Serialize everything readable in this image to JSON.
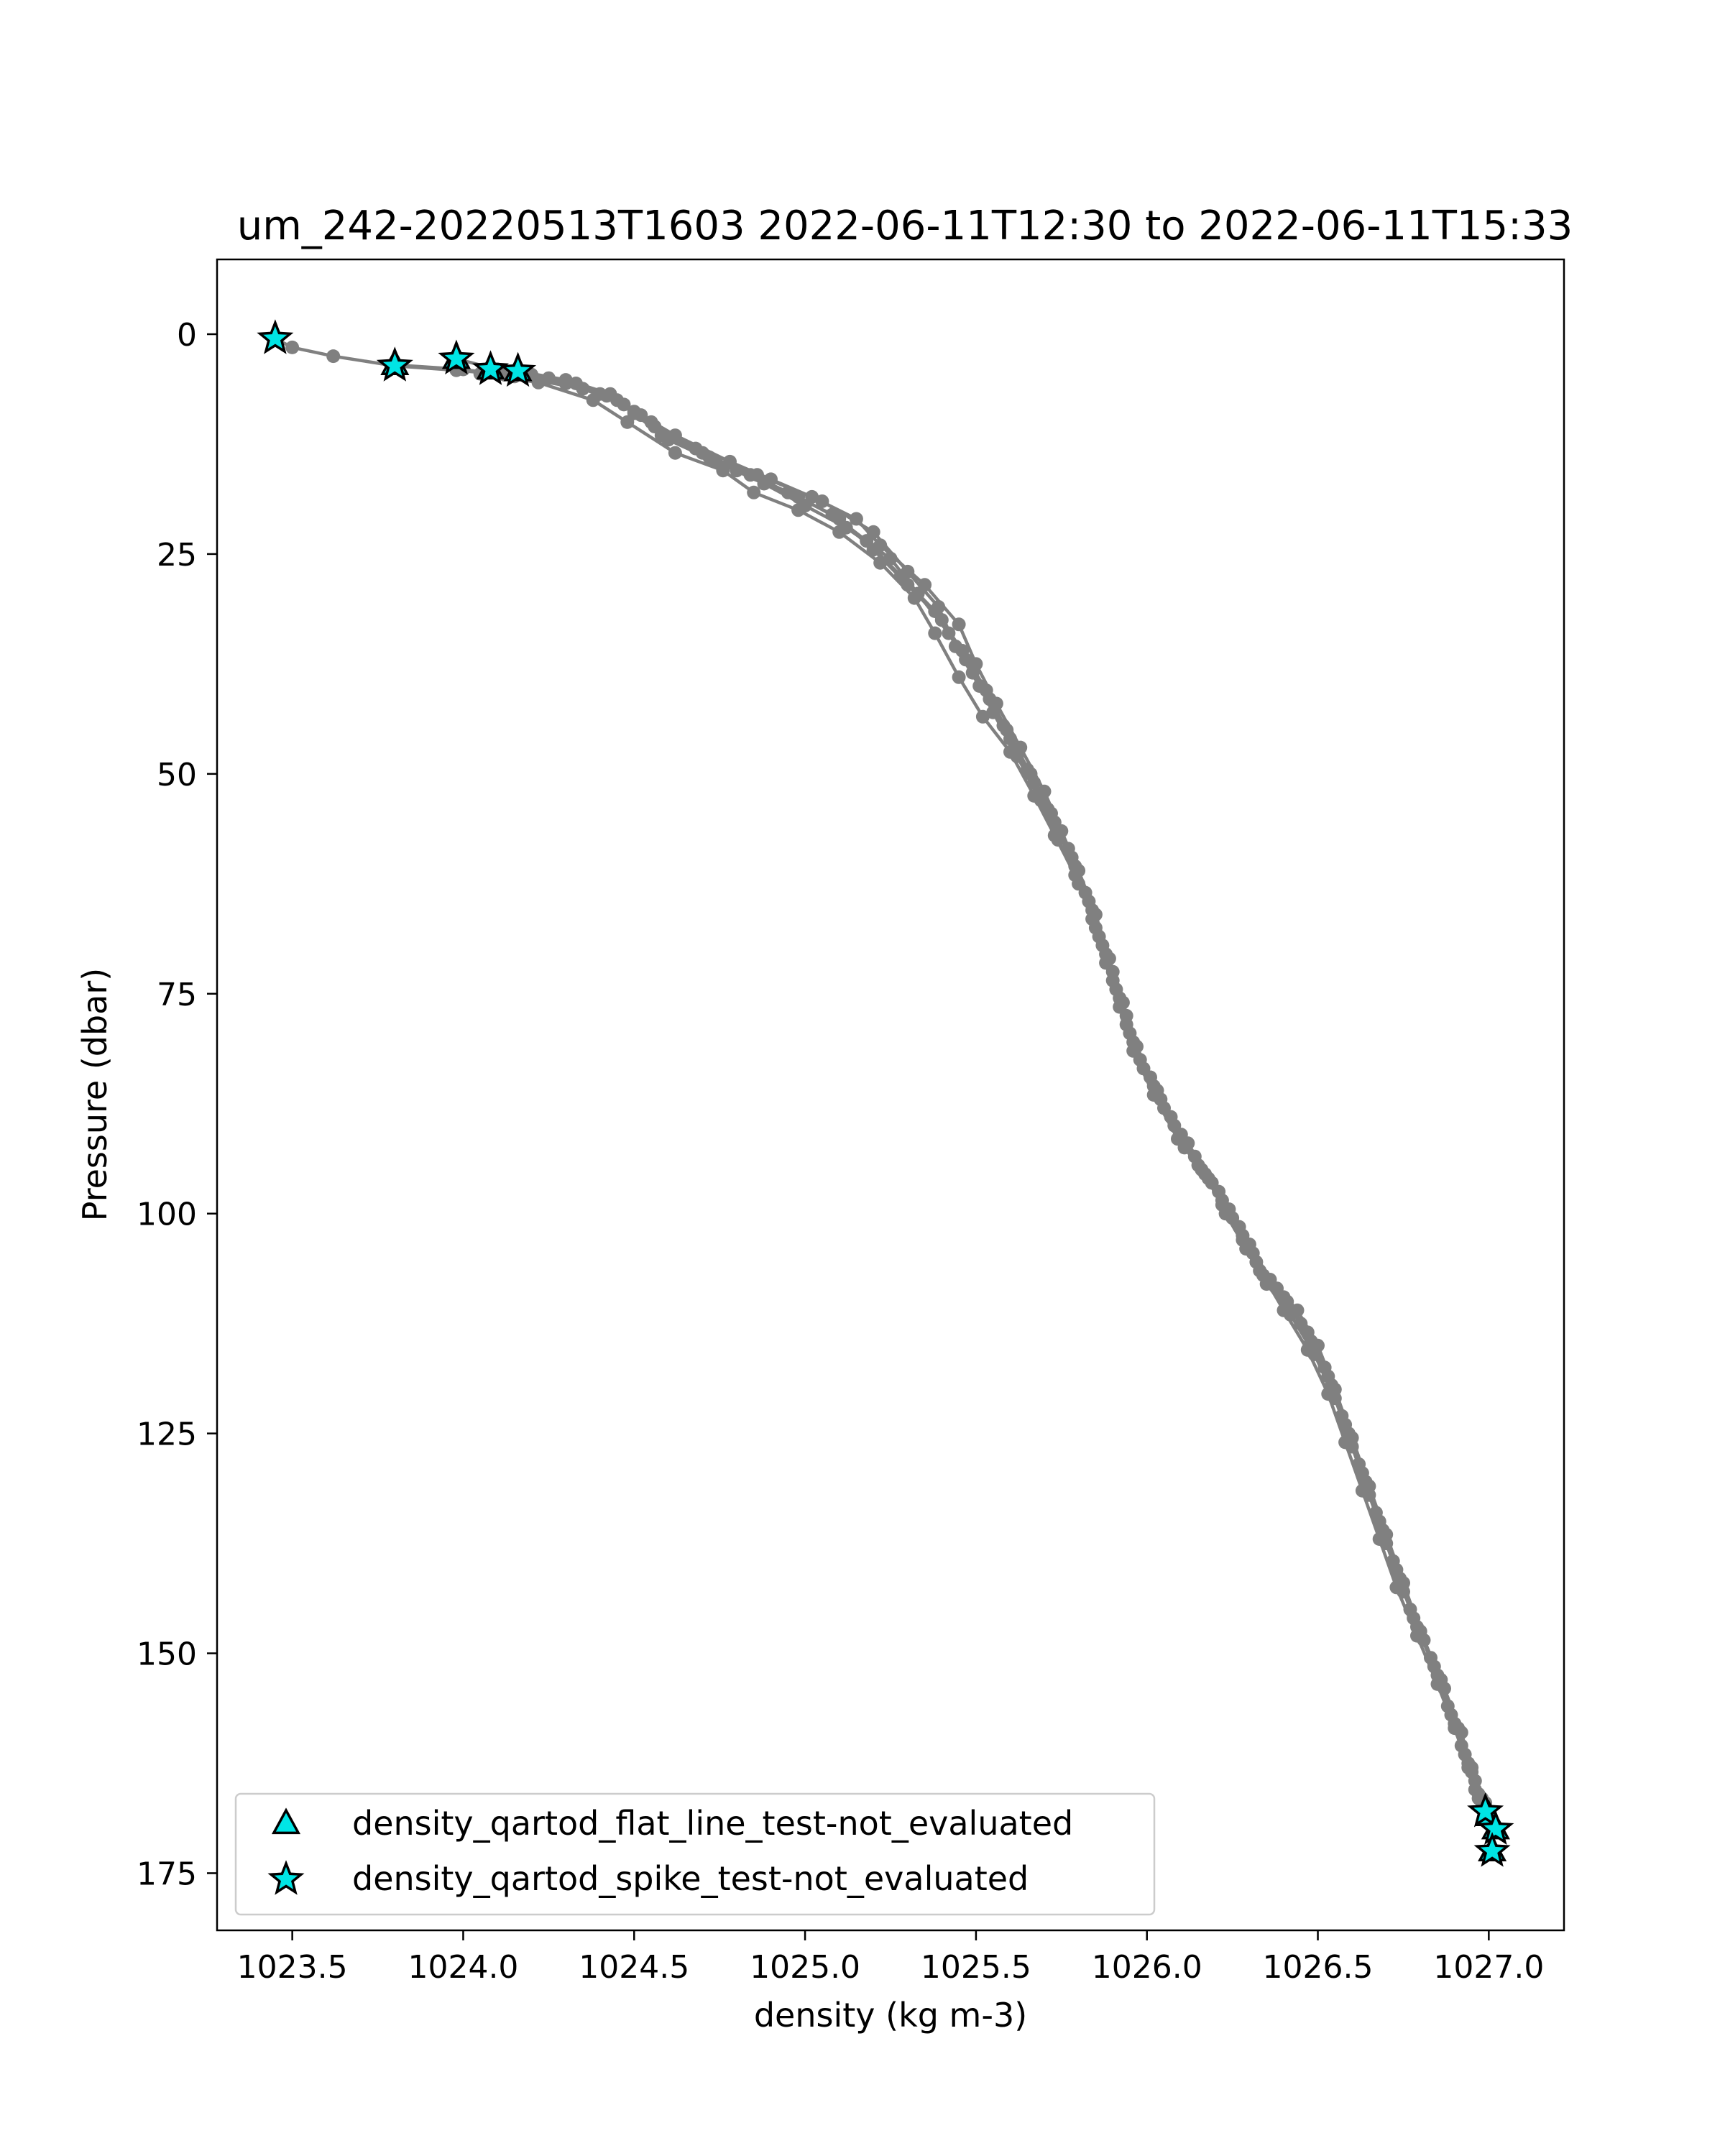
{
  "chart_data": {
    "type": "scatter",
    "title": "um_242-20220513T1603 2022-06-11T12:30 to 2022-06-11T15:33",
    "xlabel": "density (kg m-3)",
    "ylabel": "Pressure (dbar)",
    "xlim": [
      1023.28,
      1027.22
    ],
    "ylim": [
      181.5,
      -8.5
    ],
    "y_inverted": true,
    "grid": false,
    "xticks": [
      1023.5,
      1024.0,
      1024.5,
      1025.0,
      1025.5,
      1026.0,
      1026.5,
      1027.0
    ],
    "xtick_labels": [
      "1023.5",
      "1024.0",
      "1024.5",
      "1025.0",
      "1025.5",
      "1026.0",
      "1026.5",
      "1027.0"
    ],
    "yticks": [
      0,
      25,
      50,
      75,
      100,
      125,
      150,
      175
    ],
    "ytick_labels": [
      "0",
      "25",
      "50",
      "75",
      "100",
      "125",
      "150",
      "175"
    ],
    "legend": {
      "position": "lower-left",
      "entries": [
        {
          "label": "density_qartod_flat_line_test-not_evaluated",
          "marker": "triangle",
          "color": "#00e5e5",
          "edge": "#000000"
        },
        {
          "label": "density_qartod_spike_test-not_evaluated",
          "marker": "star",
          "color": "#00e5e5",
          "edge": "#000000"
        }
      ]
    },
    "profile_color": "#808080",
    "profiles": [
      [
        [
          1023.45,
          0.5
        ],
        [
          1023.5,
          1.5
        ],
        [
          1023.62,
          2.5
        ],
        [
          1023.8,
          3.6
        ],
        [
          1023.98,
          4.1
        ],
        [
          1024.12,
          4.6
        ],
        [
          1024.3,
          5.6
        ],
        [
          1024.42,
          7.0
        ],
        [
          1024.5,
          8.8
        ],
        [
          1024.62,
          11.5
        ],
        [
          1024.78,
          14.5
        ],
        [
          1024.9,
          16.5
        ],
        [
          1025.02,
          18.5
        ],
        [
          1025.15,
          21.0
        ],
        [
          1025.22,
          24.0
        ],
        [
          1025.35,
          28.5
        ],
        [
          1025.45,
          33.0
        ],
        [
          1025.5,
          37.5
        ],
        [
          1025.56,
          42.0
        ],
        [
          1025.63,
          47.0
        ],
        [
          1025.7,
          52.0
        ],
        [
          1025.75,
          56.5
        ],
        [
          1025.8,
          61.0
        ],
        [
          1025.85,
          66.0
        ],
        [
          1025.89,
          71.0
        ],
        [
          1025.93,
          76.0
        ],
        [
          1025.97,
          81.0
        ],
        [
          1026.03,
          86.0
        ],
        [
          1026.1,
          91.0
        ],
        [
          1026.17,
          95.5
        ],
        [
          1026.24,
          99.5
        ],
        [
          1026.3,
          103.5
        ],
        [
          1026.36,
          107.5
        ],
        [
          1026.44,
          111.0
        ],
        [
          1026.5,
          115.0
        ],
        [
          1026.55,
          120.0
        ],
        [
          1026.6,
          125.5
        ],
        [
          1026.65,
          131.0
        ],
        [
          1026.7,
          136.5
        ],
        [
          1026.75,
          142.0
        ],
        [
          1026.8,
          147.5
        ],
        [
          1026.86,
          153.0
        ],
        [
          1026.91,
          158.5
        ],
        [
          1026.95,
          163.0
        ],
        [
          1026.98,
          167.5
        ],
        [
          1027.0,
          168.5
        ]
      ],
      [
        [
          1023.8,
          3.5
        ],
        [
          1024.0,
          4.0
        ],
        [
          1024.15,
          4.8
        ],
        [
          1024.35,
          6.2
        ],
        [
          1024.47,
          8.0
        ],
        [
          1024.56,
          10.5
        ],
        [
          1024.7,
          13.5
        ],
        [
          1024.84,
          16.0
        ],
        [
          1024.98,
          18.5
        ],
        [
          1025.1,
          21.0
        ],
        [
          1025.2,
          24.5
        ],
        [
          1025.3,
          28.5
        ],
        [
          1025.4,
          32.5
        ],
        [
          1025.47,
          37.0
        ],
        [
          1025.54,
          41.5
        ],
        [
          1025.6,
          46.0
        ],
        [
          1025.67,
          51.0
        ],
        [
          1025.73,
          55.5
        ],
        [
          1025.79,
          60.5
        ],
        [
          1025.84,
          65.5
        ],
        [
          1025.88,
          70.5
        ],
        [
          1025.92,
          75.5
        ],
        [
          1025.96,
          80.5
        ],
        [
          1026.02,
          85.5
        ],
        [
          1026.08,
          90.0
        ],
        [
          1026.15,
          94.5
        ],
        [
          1026.22,
          98.5
        ],
        [
          1026.28,
          102.5
        ],
        [
          1026.33,
          106.5
        ],
        [
          1026.41,
          110.0
        ],
        [
          1026.48,
          114.5
        ],
        [
          1026.54,
          119.5
        ],
        [
          1026.59,
          125.0
        ],
        [
          1026.64,
          130.5
        ],
        [
          1026.69,
          136.0
        ],
        [
          1026.74,
          141.5
        ],
        [
          1026.79,
          147.0
        ],
        [
          1026.85,
          152.5
        ],
        [
          1026.9,
          158.0
        ],
        [
          1026.94,
          162.5
        ],
        [
          1026.97,
          166.5
        ],
        [
          1026.99,
          168.0
        ]
      ],
      [
        [
          1024.08,
          4.0
        ],
        [
          1024.2,
          4.6
        ],
        [
          1024.33,
          5.6
        ],
        [
          1024.45,
          7.5
        ],
        [
          1024.55,
          10.0
        ],
        [
          1024.68,
          13.0
        ],
        [
          1024.8,
          15.5
        ],
        [
          1024.95,
          18.0
        ],
        [
          1025.08,
          20.5
        ],
        [
          1025.18,
          23.5
        ],
        [
          1025.28,
          27.5
        ],
        [
          1025.38,
          31.5
        ],
        [
          1025.46,
          36.0
        ],
        [
          1025.53,
          40.5
        ],
        [
          1025.59,
          45.0
        ],
        [
          1025.66,
          50.0
        ],
        [
          1025.72,
          54.5
        ],
        [
          1025.78,
          59.5
        ],
        [
          1025.83,
          64.5
        ],
        [
          1025.87,
          69.5
        ],
        [
          1025.91,
          74.5
        ],
        [
          1025.95,
          79.5
        ],
        [
          1026.01,
          84.5
        ],
        [
          1026.07,
          89.0
        ],
        [
          1026.14,
          93.5
        ],
        [
          1026.21,
          97.5
        ],
        [
          1026.27,
          101.5
        ],
        [
          1026.32,
          105.5
        ],
        [
          1026.4,
          109.5
        ],
        [
          1026.47,
          113.5
        ],
        [
          1026.53,
          118.5
        ],
        [
          1026.58,
          124.0
        ],
        [
          1026.63,
          129.5
        ],
        [
          1026.68,
          135.0
        ],
        [
          1026.73,
          140.5
        ],
        [
          1026.78,
          146.0
        ],
        [
          1026.84,
          151.5
        ],
        [
          1026.89,
          157.0
        ],
        [
          1026.93,
          161.5
        ],
        [
          1026.96,
          165.5
        ],
        [
          1026.98,
          167.5
        ],
        [
          1027.02,
          170.0
        ]
      ],
      [
        [
          1023.98,
          2.8
        ],
        [
          1024.1,
          4.0
        ],
        [
          1024.25,
          5.0
        ],
        [
          1024.4,
          6.8
        ],
        [
          1024.52,
          9.2
        ],
        [
          1024.6,
          12.0
        ],
        [
          1024.74,
          14.5
        ],
        [
          1024.88,
          17.0
        ],
        [
          1025.0,
          19.5
        ],
        [
          1025.12,
          22.0
        ],
        [
          1025.25,
          25.5
        ],
        [
          1025.33,
          29.5
        ],
        [
          1025.42,
          34.0
        ],
        [
          1025.49,
          38.5
        ],
        [
          1025.55,
          43.0
        ],
        [
          1025.62,
          48.0
        ],
        [
          1025.69,
          53.0
        ],
        [
          1025.74,
          57.5
        ],
        [
          1025.8,
          62.5
        ],
        [
          1025.85,
          67.5
        ],
        [
          1025.9,
          72.5
        ],
        [
          1025.94,
          77.5
        ],
        [
          1025.98,
          82.5
        ],
        [
          1026.04,
          87.0
        ],
        [
          1026.12,
          92.0
        ],
        [
          1026.19,
          96.5
        ],
        [
          1026.25,
          100.5
        ],
        [
          1026.31,
          104.5
        ],
        [
          1026.38,
          108.5
        ],
        [
          1026.45,
          112.5
        ],
        [
          1026.52,
          117.5
        ],
        [
          1026.57,
          123.0
        ],
        [
          1026.62,
          128.5
        ],
        [
          1026.67,
          134.0
        ],
        [
          1026.72,
          139.5
        ],
        [
          1026.77,
          145.0
        ],
        [
          1026.83,
          150.5
        ],
        [
          1026.88,
          156.0
        ],
        [
          1026.92,
          160.5
        ],
        [
          1026.96,
          164.5
        ],
        [
          1026.99,
          167.0
        ]
      ],
      [
        [
          1024.16,
          4.2
        ],
        [
          1024.3,
          5.2
        ],
        [
          1024.43,
          6.8
        ],
        [
          1024.5,
          9.0
        ],
        [
          1024.58,
          11.5
        ],
        [
          1024.72,
          14.0
        ],
        [
          1024.86,
          16.0
        ],
        [
          1025.05,
          19.0
        ],
        [
          1025.2,
          22.5
        ],
        [
          1025.3,
          27.0
        ],
        [
          1025.39,
          31.0
        ],
        [
          1025.44,
          35.5
        ],
        [
          1025.51,
          40.0
        ],
        [
          1025.58,
          44.5
        ],
        [
          1025.65,
          49.5
        ],
        [
          1025.71,
          54.0
        ],
        [
          1025.77,
          58.5
        ],
        [
          1025.82,
          63.5
        ],
        [
          1025.86,
          68.5
        ],
        [
          1025.9,
          73.5
        ],
        [
          1025.94,
          78.5
        ],
        [
          1025.99,
          83.5
        ],
        [
          1026.05,
          88.0
        ],
        [
          1026.11,
          92.5
        ],
        [
          1026.18,
          96.0
        ],
        [
          1026.23,
          100.0
        ],
        [
          1026.29,
          104.0
        ],
        [
          1026.35,
          108.0
        ],
        [
          1026.42,
          111.5
        ],
        [
          1026.49,
          116.0
        ],
        [
          1026.55,
          121.0
        ],
        [
          1026.6,
          126.5
        ],
        [
          1026.65,
          132.0
        ],
        [
          1026.7,
          137.5
        ],
        [
          1026.75,
          143.0
        ],
        [
          1026.81,
          148.5
        ],
        [
          1026.87,
          154.0
        ],
        [
          1026.92,
          159.0
        ],
        [
          1026.95,
          163.5
        ],
        [
          1026.98,
          166.5
        ],
        [
          1027.01,
          172.5
        ]
      ],
      [
        [
          1024.05,
          4.5
        ],
        [
          1024.22,
          5.5
        ],
        [
          1024.38,
          7.5
        ],
        [
          1024.48,
          10.0
        ],
        [
          1024.62,
          13.5
        ],
        [
          1024.76,
          15.5
        ],
        [
          1024.85,
          18.0
        ],
        [
          1024.98,
          20.0
        ],
        [
          1025.1,
          22.5
        ],
        [
          1025.22,
          26.0
        ],
        [
          1025.32,
          30.0
        ],
        [
          1025.38,
          34.0
        ],
        [
          1025.45,
          39.0
        ],
        [
          1025.52,
          43.5
        ],
        [
          1025.6,
          47.5
        ],
        [
          1025.67,
          52.5
        ],
        [
          1025.73,
          57.0
        ],
        [
          1025.79,
          61.5
        ],
        [
          1025.84,
          66.5
        ],
        [
          1025.88,
          71.5
        ],
        [
          1025.92,
          76.5
        ],
        [
          1025.96,
          81.5
        ],
        [
          1026.02,
          86.5
        ],
        [
          1026.09,
          91.5
        ],
        [
          1026.16,
          95.0
        ],
        [
          1026.22,
          99.0
        ],
        [
          1026.28,
          103.0
        ],
        [
          1026.34,
          107.0
        ],
        [
          1026.4,
          111.0
        ],
        [
          1026.47,
          115.5
        ],
        [
          1026.53,
          120.5
        ],
        [
          1026.58,
          126.0
        ],
        [
          1026.63,
          131.5
        ],
        [
          1026.68,
          137.0
        ],
        [
          1026.73,
          142.5
        ],
        [
          1026.79,
          148.0
        ],
        [
          1026.85,
          153.5
        ],
        [
          1026.9,
          158.5
        ],
        [
          1026.94,
          163.0
        ],
        [
          1026.97,
          166.0
        ]
      ]
    ],
    "flagged_points": [
      {
        "x": 1023.45,
        "y": 0.5,
        "marker": "star"
      },
      {
        "x": 1023.8,
        "y": 3.5,
        "marker": "triangle"
      },
      {
        "x": 1023.8,
        "y": 3.6,
        "marker": "star"
      },
      {
        "x": 1023.98,
        "y": 2.8,
        "marker": "triangle"
      },
      {
        "x": 1023.98,
        "y": 2.8,
        "marker": "star"
      },
      {
        "x": 1024.08,
        "y": 4.0,
        "marker": "triangle"
      },
      {
        "x": 1024.08,
        "y": 4.0,
        "marker": "star"
      },
      {
        "x": 1024.16,
        "y": 4.2,
        "marker": "triangle"
      },
      {
        "x": 1024.16,
        "y": 4.2,
        "marker": "star"
      },
      {
        "x": 1026.99,
        "y": 168.0,
        "marker": "star"
      },
      {
        "x": 1027.0,
        "y": 168.5,
        "marker": "triangle"
      },
      {
        "x": 1027.02,
        "y": 170.0,
        "marker": "star"
      },
      {
        "x": 1027.02,
        "y": 170.0,
        "marker": "triangle"
      },
      {
        "x": 1027.01,
        "y": 172.5,
        "marker": "triangle"
      },
      {
        "x": 1027.01,
        "y": 172.5,
        "marker": "star"
      }
    ]
  }
}
